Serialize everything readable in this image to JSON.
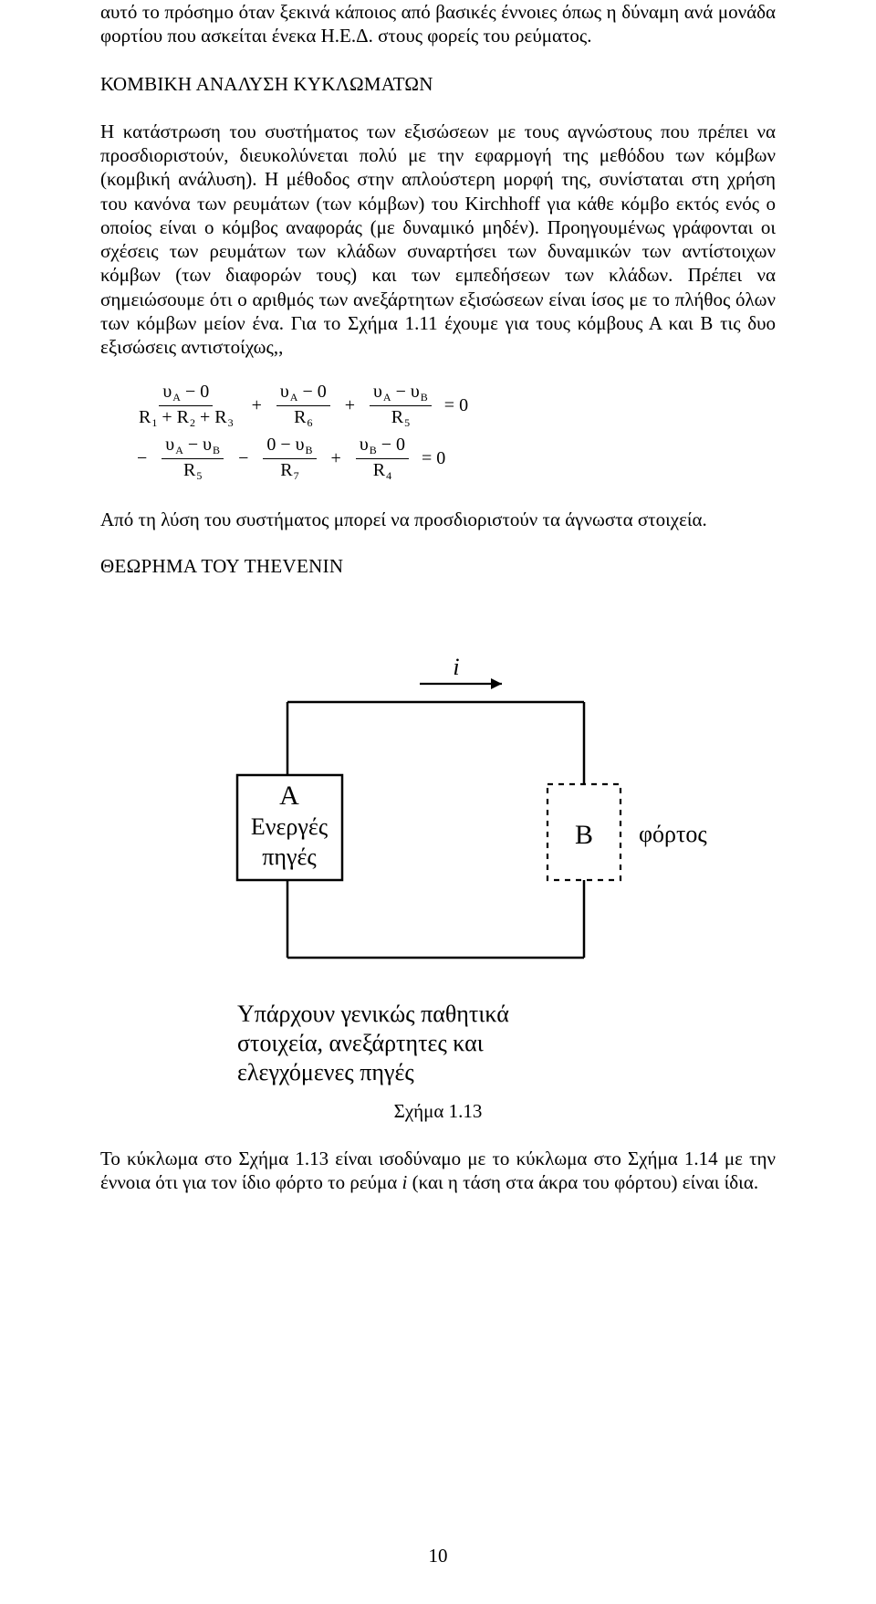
{
  "intro_para": "αυτό το πρόσημο όταν ξεκινά κάποιος από βασικές έννοιες όπως η δύναμη ανά μονάδα φορτίου που ασκείται ένεκα Η.Ε.Δ. στους φορείς του ρεύματος.",
  "section1_title": "ΚΟΜΒΙΚΗ ΑΝΑΛΥΣΗ ΚΥΚΛΩΜΑΤΩΝ",
  "section1_body": "Η κατάστρωση του συστήματος των εξισώσεων με τους αγνώστους που πρέπει να προσδιοριστούν, διευκολύνεται πολύ με την εφαρμογή της μεθόδου των κόμβων (κομβική ανάλυση). Η μέθοδος στην απλούστερη μορφή της, συνίσταται στη χρήση του κανόνα των ρευμάτων (των κόμβων) του Kirchhoff  για κάθε κόμβο εκτός ενός ο οποίος είναι ο κόμβος αναφοράς (με δυναμικό μηδέν). Προηγουμένως γράφονται οι σχέσεις των ρευμάτων των κλάδων συναρτήσει των δυναμικών των αντίστοιχων κόμβων (των διαφορών τους) και των εμπεδήσεων των κλάδων. Πρέπει να σημειώσουμε ότι ο αριθμός των ανεξάρτητων εξισώσεων είναι ίσος με το πλήθος όλων των κόμβων μείον ένα. Για το Σχήμα 1.11 έχουμε για τους κόμβους Α και Β τις δυο εξισώσεις αντιστοίχως,,",
  "eq1": {
    "f1": {
      "num": "υ<span class='sub'>A</span> − 0",
      "den": "R<span class='sub'>1</span> + R<span class='sub'>2</span> + R<span class='sub'>3</span>"
    },
    "f2": {
      "num": "υ<span class='sub'>A</span> − 0",
      "den": "R<span class='sub'>6</span>"
    },
    "f3": {
      "num": "υ<span class='sub'>A</span> − υ<span class='sub'>B</span>",
      "den": "R<span class='sub'>5</span>"
    },
    "rhs": "= 0"
  },
  "eq2": {
    "lead": "−",
    "f1": {
      "num": "υ<span class='sub'>A</span> − υ<span class='sub'>B</span>",
      "den": "R<span class='sub'>5</span>"
    },
    "f2": {
      "num": "0 − υ<span class='sub'>B</span>",
      "den": "R<span class='sub'>7</span>"
    },
    "f3": {
      "num": "υ<span class='sub'>B</span> − 0",
      "den": "R<span class='sub'>4</span>"
    },
    "rhs": "= 0"
  },
  "after_eq_para": "Από τη λύση του συστήματος μπορεί να προσδιοριστούν τα άγνωστα στοιχεία.",
  "thevenin_title": "ΘΕΩΡΗΜΑ  ΤΟΥ THEVENIN",
  "figure": {
    "i_label": "i",
    "boxA_label": "Α",
    "boxA_line2": "Ενεργές",
    "boxA_line3": "πηγές",
    "boxB_label": "B",
    "load_label": "φόρτος",
    "sub_text_line1": "Υπάρχουν γενικώς παθητικά",
    "sub_text_line2": "στοιχεία, ανεξάρτητες και",
    "sub_text_line3": "ελεγχόμενες πηγές",
    "caption": "Σχήμα 1.13"
  },
  "final_para_prefix": "Το κύκλωμα στο Σχήμα 1.13 είναι ισοδύναμο με το κύκλωμα στο Σχήμα 1.14 με την έννοια ότι για τον ίδιο φόρτο το ρεύμα ",
  "final_para_ivar": "i",
  "final_para_suffix": " (και η τάση στα άκρα του φόρτου) είναι ίδια.",
  "page_number": "10"
}
